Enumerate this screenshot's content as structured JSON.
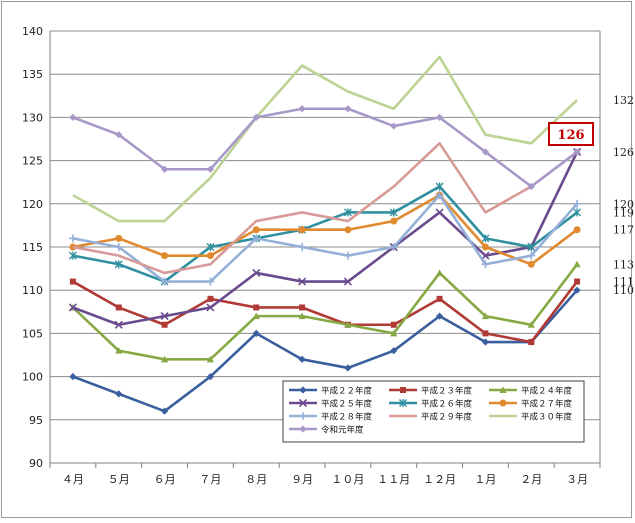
{
  "chart_data": {
    "type": "line",
    "title": "",
    "xlabel": "",
    "ylabel": "",
    "ylim": [
      90,
      140
    ],
    "ytick_step": 5,
    "categories": [
      "４月",
      "５月",
      "６月",
      "７月",
      "８月",
      "９月",
      "１０月",
      "１１月",
      "１２月",
      "１月",
      "２月",
      "３月"
    ],
    "series": [
      {
        "name": "平成２２年度",
        "color": "#3a5f9e",
        "marker": "diamond",
        "values": [
          100,
          98,
          96,
          100,
          105,
          102,
          101,
          103,
          107,
          104,
          104,
          110
        ]
      },
      {
        "name": "平成２３年度",
        "color": "#b03a35",
        "marker": "square",
        "values": [
          111,
          108,
          106,
          109,
          108,
          108,
          106,
          106,
          109,
          105,
          104,
          111
        ]
      },
      {
        "name": "平成２４年度",
        "color": "#86a944",
        "marker": "triangle",
        "values": [
          108,
          103,
          102,
          102,
          107,
          107,
          106,
          105,
          112,
          107,
          106,
          113
        ]
      },
      {
        "name": "平成２５年度",
        "color": "#6a4c8e",
        "marker": "x",
        "values": [
          108,
          106,
          107,
          108,
          112,
          111,
          111,
          115,
          119,
          114,
          115,
          126
        ]
      },
      {
        "name": "平成２６年度",
        "color": "#2f8fa0",
        "marker": "star",
        "values": [
          114,
          113,
          111,
          115,
          116,
          117,
          119,
          119,
          122,
          116,
          115,
          119
        ]
      },
      {
        "name": "平成２７年度",
        "color": "#e08a30",
        "marker": "circle",
        "values": [
          115,
          116,
          114,
          114,
          117,
          117,
          117,
          118,
          121,
          115,
          113,
          117
        ]
      },
      {
        "name": "平成２８年度",
        "color": "#95b0d8",
        "marker": "plus",
        "values": [
          116,
          115,
          111,
          111,
          116,
          115,
          114,
          115,
          121,
          113,
          114,
          120
        ]
      },
      {
        "name": "平成２９年度",
        "color": "#d89a98",
        "marker": "none",
        "values": [
          115,
          114,
          112,
          113,
          118,
          119,
          118,
          122,
          127,
          119,
          122,
          126
        ]
      },
      {
        "name": "平成３０年度",
        "color": "#bcd394",
        "marker": "none",
        "values": [
          121,
          118,
          118,
          123,
          130,
          136,
          133,
          131,
          137,
          128,
          127,
          132
        ]
      },
      {
        "name": "令和元年度",
        "color": "#a899c8",
        "marker": "diamond",
        "values": [
          130,
          128,
          124,
          124,
          130,
          131,
          131,
          129,
          130,
          126,
          122,
          126
        ]
      }
    ],
    "end_labels": [
      {
        "text": "132",
        "value": 132
      },
      {
        "text": "126",
        "value": 126
      },
      {
        "text": "120",
        "value": 120
      },
      {
        "text": "119",
        "value": 119
      },
      {
        "text": "117",
        "value": 117
      },
      {
        "text": "113",
        "value": 113
      },
      {
        "text": "111",
        "value": 111
      },
      {
        "text": "110",
        "value": 110
      }
    ],
    "callout": {
      "text": "126",
      "value": 126
    },
    "legend_placement": "bottom-center"
  }
}
